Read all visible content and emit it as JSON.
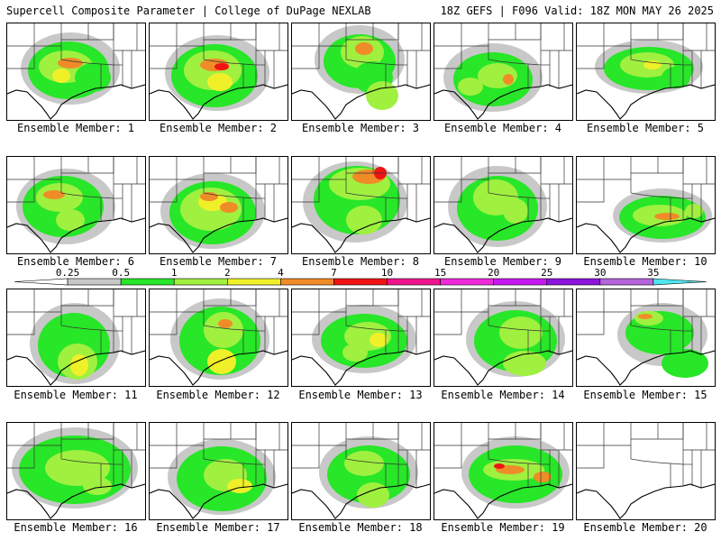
{
  "header": {
    "title_left": "Supercell Composite Parameter | College of DuPage NEXLAB",
    "title_right": "18Z GEFS | F096 Valid: 18Z MON MAY 26 2025"
  },
  "colorbar": {
    "labels": [
      "0.25",
      "0.5",
      "1",
      "2",
      "4",
      "7",
      "10",
      "15",
      "20",
      "25",
      "30",
      "35"
    ],
    "colors": [
      "#ffffff",
      "#c8c8c8",
      "#28e628",
      "#a0f040",
      "#f0f028",
      "#f08c28",
      "#f01414",
      "#f0148c",
      "#f028dc",
      "#c818f0",
      "#8c14dc",
      "#b464dc",
      "#50e6f0"
    ]
  },
  "panel_label_prefix": "Ensemble Member: ",
  "members": [
    {
      "id": "1",
      "label": "Ensemble Member: 1"
    },
    {
      "id": "2",
      "label": "Ensemble Member: 2"
    },
    {
      "id": "3",
      "label": "Ensemble Member: 3"
    },
    {
      "id": "4",
      "label": "Ensemble Member: 4"
    },
    {
      "id": "5",
      "label": "Ensemble Member: 5"
    },
    {
      "id": "6",
      "label": "Ensemble Member: 6"
    },
    {
      "id": "7",
      "label": "Ensemble Member: 7"
    },
    {
      "id": "8",
      "label": "Ensemble Member: 8"
    },
    {
      "id": "9",
      "label": "Ensemble Member: 9"
    },
    {
      "id": "10",
      "label": "Ensemble Member: 10"
    },
    {
      "id": "11",
      "label": "Ensemble Member: 11"
    },
    {
      "id": "12",
      "label": "Ensemble Member: 12"
    },
    {
      "id": "13",
      "label": "Ensemble Member: 13"
    },
    {
      "id": "14",
      "label": "Ensemble Member: 14"
    },
    {
      "id": "15",
      "label": "Ensemble Member: 15"
    },
    {
      "id": "16",
      "label": "Ensemble Member: 16"
    },
    {
      "id": "17",
      "label": "Ensemble Member: 17"
    },
    {
      "id": "18",
      "label": "Ensemble Member: 18"
    },
    {
      "id": "19",
      "label": "Ensemble Member: 19"
    },
    {
      "id": "20",
      "label": "Ensemble Member: 20"
    }
  ]
}
